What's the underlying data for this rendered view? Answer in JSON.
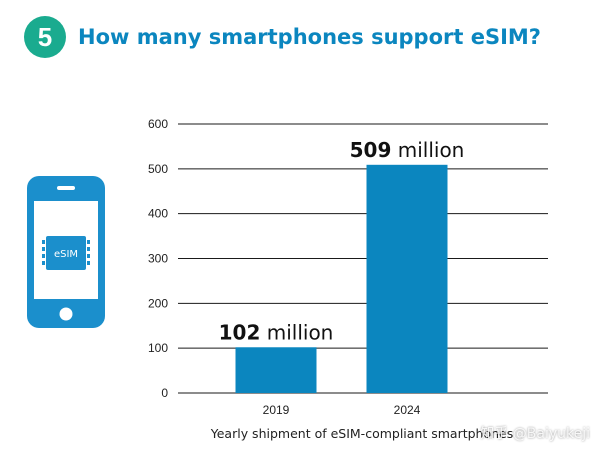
{
  "header": {
    "step_number": "5",
    "title": "How many smartphones support eSIM?"
  },
  "illustration": {
    "chip_label": "eSIM",
    "icon": "smartphone-esim-icon"
  },
  "colors": {
    "bar": "#0b86bf",
    "badge": "#1aab8f",
    "title": "#0b86bf",
    "phone": "#1b8fcc"
  },
  "chart_data": {
    "type": "bar",
    "categories": [
      "2019",
      "2024"
    ],
    "values": [
      102,
      509
    ],
    "data_labels": [
      {
        "number": "102",
        "unit": " million"
      },
      {
        "number": "509",
        "unit": " million"
      }
    ],
    "xlabel": "Yearly shipment of eSIM-compliant smartphones",
    "ylabel": "",
    "ylim": [
      0,
      600
    ],
    "yticks": [
      0,
      100,
      200,
      300,
      400,
      500,
      600
    ],
    "grid": true
  },
  "watermark": "知乎 @Baiyukeji"
}
